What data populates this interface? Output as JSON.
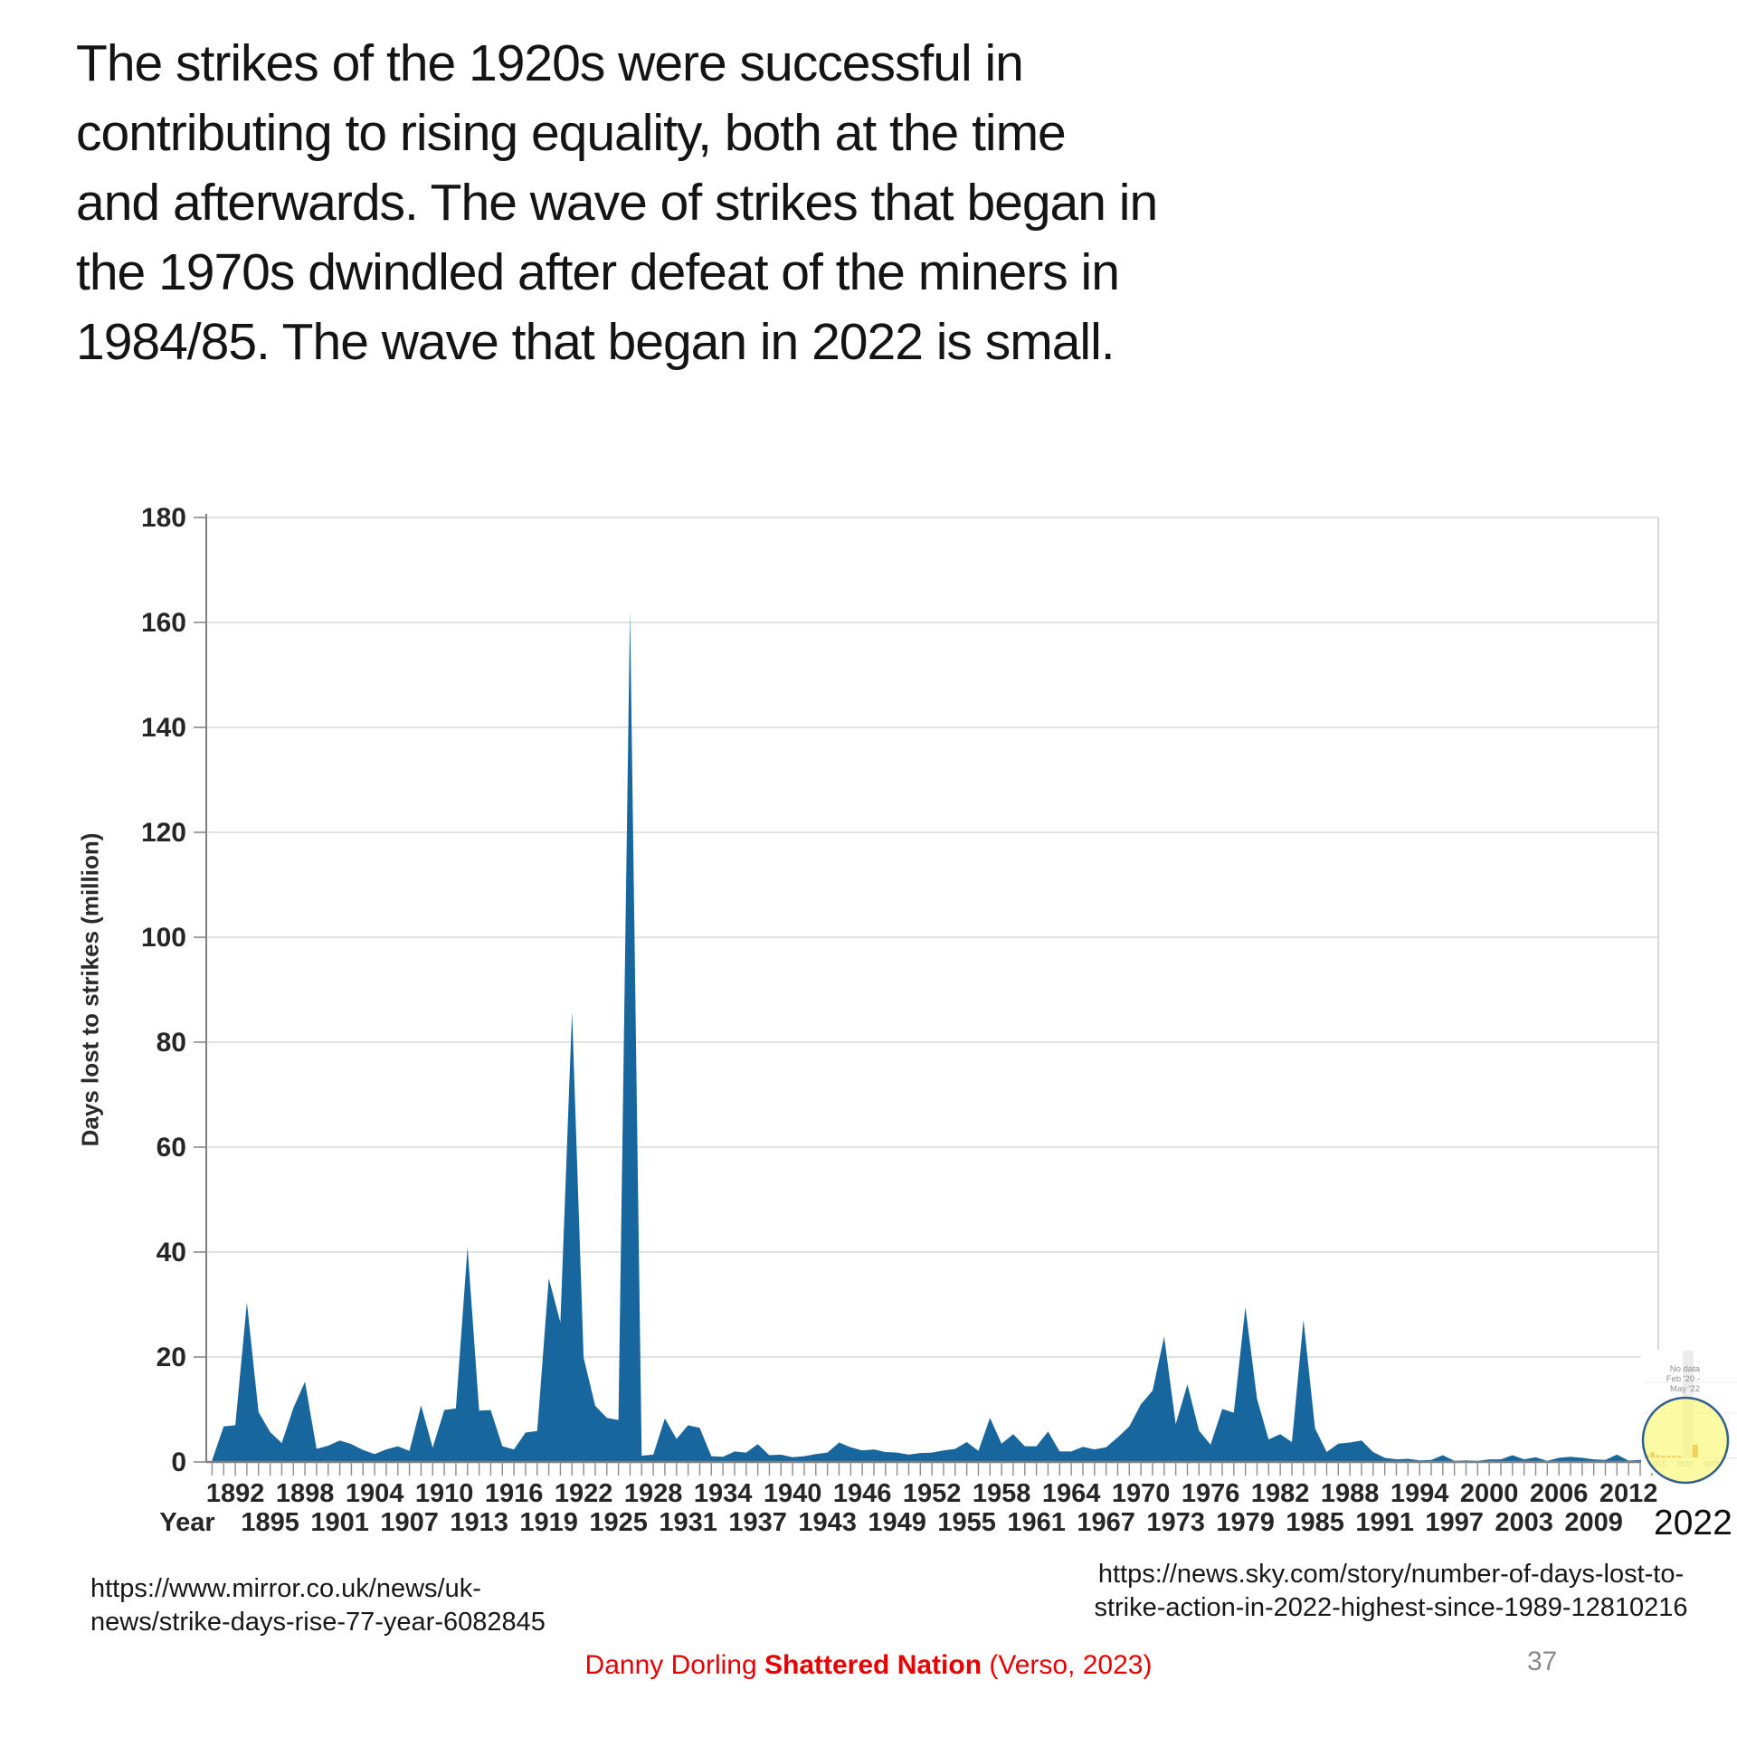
{
  "slide": {
    "title_lines": [
      "The strikes of the 1920s were successful in",
      "contributing to rising equality, both at the time",
      "and afterwards. The wave of strikes that began in",
      "the 1970s dwindled after defeat of the miners in",
      "1984/85. The wave that began in 2022 is small."
    ]
  },
  "chart_data": {
    "type": "area",
    "title": "",
    "xlabel": "Year",
    "ylabel": "Days lost to strikes (million)",
    "ylim": [
      0,
      180
    ],
    "yticks": [
      0,
      20,
      40,
      60,
      80,
      100,
      120,
      140,
      160,
      180
    ],
    "grid": "horizontal",
    "x_start_year": 1890,
    "x_end_year": 2014,
    "values": [
      0.3,
      6.8,
      7.0,
      30.4,
      9.5,
      5.7,
      3.6,
      10.3,
      15.3,
      2.5,
      3.1,
      4.1,
      3.4,
      2.3,
      1.5,
      2.4,
      3.0,
      2.1,
      10.8,
      2.7,
      9.9,
      10.2,
      40.9,
      9.8,
      9.9,
      3.0,
      2.4,
      5.6,
      5.9,
      35.0,
      26.6,
      85.9,
      19.9,
      10.7,
      8.4,
      8.0,
      162.2,
      1.2,
      1.4,
      8.3,
      4.4,
      7.0,
      6.5,
      1.1,
      1.0,
      2.0,
      1.8,
      3.4,
      1.3,
      1.4,
      0.9,
      1.1,
      1.5,
      1.8,
      3.7,
      2.8,
      2.2,
      2.4,
      1.9,
      1.8,
      1.4,
      1.7,
      1.8,
      2.2,
      2.5,
      3.8,
      2.1,
      8.4,
      3.5,
      5.3,
      3.0,
      3.0,
      5.8,
      2.0,
      2.0,
      2.9,
      2.4,
      2.8,
      4.7,
      6.8,
      11.0,
      13.6,
      23.9,
      7.2,
      14.8,
      6.0,
      3.3,
      10.1,
      9.4,
      29.5,
      12.0,
      4.3,
      5.3,
      3.8,
      27.1,
      6.4,
      1.9,
      3.5,
      3.7,
      4.1,
      1.9,
      0.8,
      0.5,
      0.6,
      0.3,
      0.4,
      1.3,
      0.2,
      0.3,
      0.2,
      0.5,
      0.5,
      1.3,
      0.5,
      0.9,
      0.2,
      0.8,
      1.0,
      0.8,
      0.5,
      0.4,
      1.4,
      0.25,
      0.4,
      0.8
    ],
    "xtick_row1": [
      "1892",
      "1898",
      "1904",
      "1910",
      "1916",
      "1922",
      "1928",
      "1934",
      "1940",
      "1946",
      "1952",
      "1958",
      "1964",
      "1970",
      "1976",
      "1982",
      "1988",
      "1994",
      "2000",
      "2006",
      "2012"
    ],
    "xtick_row2_label": "Year",
    "xtick_row2": [
      "1895",
      "1901",
      "1907",
      "1913",
      "1919",
      "1925",
      "1931",
      "1937",
      "1943",
      "1949",
      "1955",
      "1961",
      "1967",
      "1973",
      "1979",
      "1985",
      "1991",
      "1997",
      "2003",
      "2009"
    ],
    "inset": {
      "type": "bar",
      "units": "relative",
      "note_lines": [
        "No data",
        "Feb '20 -",
        "May '22"
      ],
      "xticks": [
        "2015",
        "2020",
        "2025"
      ],
      "no_data_years": [
        2020,
        2022.4
      ],
      "bars": [
        {
          "year": 2013,
          "height": 3,
          "width": 4
        },
        {
          "year": 2014,
          "height": 6,
          "width": 4
        },
        {
          "year": 2015,
          "height": 2.5,
          "width": 4
        },
        {
          "year": 2016,
          "height": 2,
          "width": 4
        },
        {
          "year": 2017,
          "height": 2,
          "width": 4
        },
        {
          "year": 2018,
          "height": 2,
          "width": 4
        },
        {
          "year": 2019,
          "height": 2,
          "width": 4
        },
        {
          "year": 2022,
          "height": 14,
          "width": 6
        }
      ]
    }
  },
  "annotations": {
    "recent_year_label": "2022"
  },
  "sources": {
    "left_lines": [
      "https://www.mirror.co.uk/news/uk-",
      "news/strike-days-rise-77-year-6082845"
    ],
    "right_lines": [
      "https://news.sky.com/story/number-of-days-lost-to-",
      "strike-action-in-2022-highest-since-1989-12810216"
    ]
  },
  "footer": {
    "credit_prefix": "Danny Dorling ",
    "credit_bold": "Shattered Nation",
    "credit_suffix": " (Verso, 2023)",
    "page_number": "37"
  },
  "colors": {
    "area": "#17669e",
    "gridline": "#d9d9d9",
    "axis": "#808080",
    "tick": "#8c8c8c",
    "axis_text": "#262626",
    "inset_bar": "#e6790f",
    "inset_band": "#ececec",
    "inset_text": "#8f8f8f",
    "highlight_fill": "#fbf87c",
    "highlight_stroke": "#30608f",
    "footer_red": "#e60000"
  }
}
